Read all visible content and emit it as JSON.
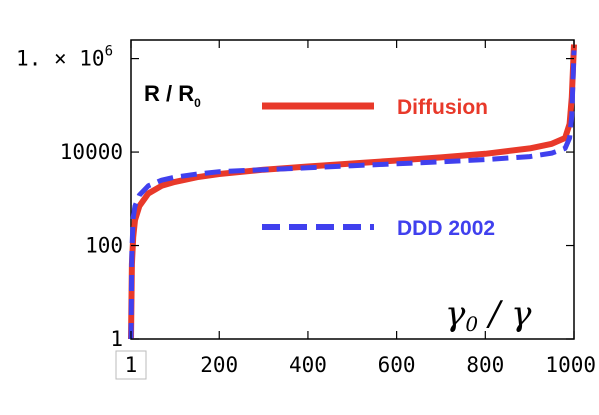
{
  "chart_data": {
    "type": "line",
    "ylabel": {
      "main": "R / R",
      "sub": "0"
    },
    "xlabel": {
      "gamma0": "γ",
      "sub": "0",
      "slash": " / ",
      "gamma": "γ"
    },
    "x_scale": "linear",
    "y_scale": "log",
    "xlim": [
      1,
      1000
    ],
    "ylim": [
      1,
      2500000
    ],
    "x_ticks": [
      {
        "value": 1,
        "label": "1"
      },
      {
        "value": 200,
        "label": "200"
      },
      {
        "value": 400,
        "label": "400"
      },
      {
        "value": 600,
        "label": "600"
      },
      {
        "value": 800,
        "label": "800"
      },
      {
        "value": 1000,
        "label": "1000"
      }
    ],
    "y_ticks": [
      {
        "value": 1,
        "label": "1"
      },
      {
        "value": 100,
        "label": "100"
      },
      {
        "value": 10000,
        "label": "10000"
      },
      {
        "value": 1000000,
        "label": "1. × 10"
      }
    ],
    "y_tick_sup": "6",
    "grid": false,
    "legend_placement": "inside",
    "series": [
      {
        "name": "Diffusion",
        "color": "#e8392a",
        "style": "solid",
        "x": [
          1,
          3,
          6,
          10,
          20,
          40,
          70,
          100,
          150,
          200,
          300,
          400,
          500,
          600,
          700,
          800,
          900,
          950,
          980,
          990,
          995,
          998,
          1000
        ],
        "y": [
          1,
          40,
          150,
          350,
          700,
          1300,
          1900,
          2300,
          2900,
          3400,
          4200,
          4900,
          5700,
          6600,
          7700,
          9200,
          12000,
          15000,
          20000,
          40000,
          150000,
          700000,
          2000000
        ]
      },
      {
        "name": "DDD 2002",
        "color": "#4040ee",
        "style": "dashed",
        "x": [
          1,
          3,
          6,
          10,
          20,
          40,
          70,
          100,
          150,
          200,
          300,
          400,
          500,
          600,
          700,
          800,
          900,
          950,
          980,
          990,
          995,
          998,
          1000
        ],
        "y": [
          1,
          80,
          400,
          700,
          1200,
          1900,
          2500,
          2900,
          3400,
          3800,
          4200,
          4600,
          5100,
          5600,
          6200,
          6900,
          8000,
          9500,
          12000,
          20000,
          60000,
          400000,
          1500000
        ]
      }
    ]
  }
}
